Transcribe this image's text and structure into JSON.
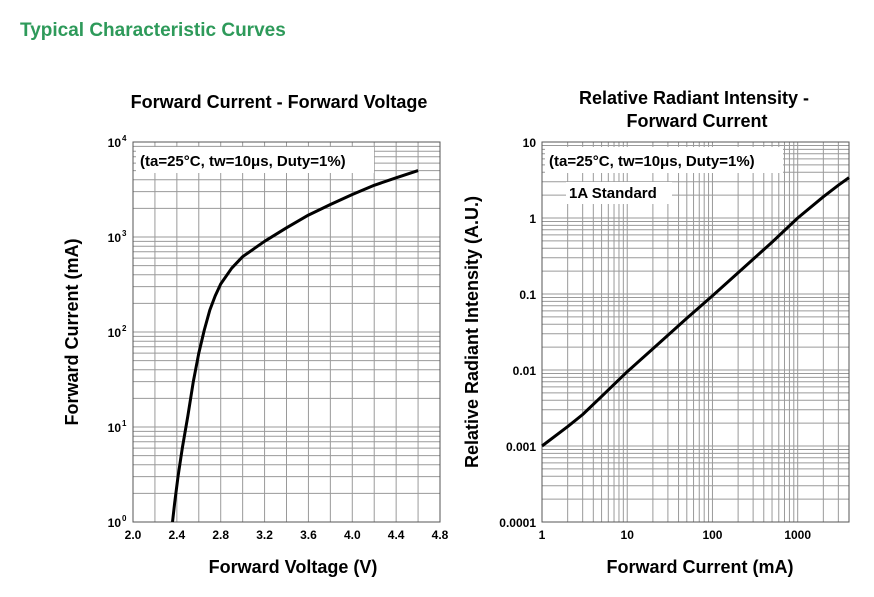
{
  "page": {
    "heading": "Typical Characteristic Curves"
  },
  "chart_data": [
    {
      "type": "line",
      "title": "Forward Current - Forward Voltage",
      "xlabel": "Forward Voltage (V)",
      "ylabel": "Forward Current (mA)",
      "annotation": "(ta=25°C, tw=10μs, Duty=1%)",
      "xscale": "linear",
      "yscale": "log",
      "xlim": [
        2.0,
        4.8
      ],
      "ylim": [
        1,
        10000
      ],
      "grid": true,
      "x_ticks": [
        "2.0",
        "2.4",
        "2.8",
        "3.2",
        "3.6",
        "4.0",
        "4.4",
        "4.8"
      ],
      "y_ticks": [
        {
          "base": "10",
          "exp": "0"
        },
        {
          "base": "10",
          "exp": "1"
        },
        {
          "base": "10",
          "exp": "2"
        },
        {
          "base": "10",
          "exp": "3"
        },
        {
          "base": "10",
          "exp": "4"
        }
      ],
      "series": [
        {
          "x": [
            2.36,
            2.38,
            2.41,
            2.45,
            2.5,
            2.55,
            2.6,
            2.65,
            2.7,
            2.75,
            2.8,
            2.9,
            3.0,
            3.2,
            3.4,
            3.6,
            3.8,
            4.0,
            4.2,
            4.4,
            4.6
          ],
          "y": [
            1,
            1.6,
            3,
            6,
            13,
            30,
            60,
            105,
            170,
            240,
            320,
            470,
            620,
            900,
            1250,
            1700,
            2200,
            2800,
            3500,
            4200,
            5000
          ]
        }
      ]
    },
    {
      "type": "line",
      "title_lines": [
        "Relative Radiant Intensity -",
        "Forward Current"
      ],
      "xlabel": "Forward Current (mA)",
      "ylabel": "Relative Radiant Intensity (A.U.)",
      "annotation": "(ta=25°C, tw=10μs, Duty=1%)",
      "annotation2": "1A Standard",
      "xscale": "log",
      "yscale": "log",
      "xlim": [
        1,
        4000
      ],
      "ylim": [
        0.0001,
        10
      ],
      "grid": true,
      "x_ticks": [
        "1",
        "10",
        "100",
        "1000"
      ],
      "y_ticks": [
        "0.0001",
        "0.001",
        "0.01",
        "0.1",
        "1",
        "10"
      ],
      "series": [
        {
          "x": [
            1,
            2,
            3,
            5,
            10,
            20,
            50,
            100,
            200,
            500,
            1000,
            2000,
            3000,
            4000
          ],
          "y": [
            0.001,
            0.0018,
            0.0026,
            0.0045,
            0.0095,
            0.019,
            0.048,
            0.095,
            0.19,
            0.48,
            1.0,
            1.9,
            2.7,
            3.4
          ]
        }
      ]
    }
  ]
}
